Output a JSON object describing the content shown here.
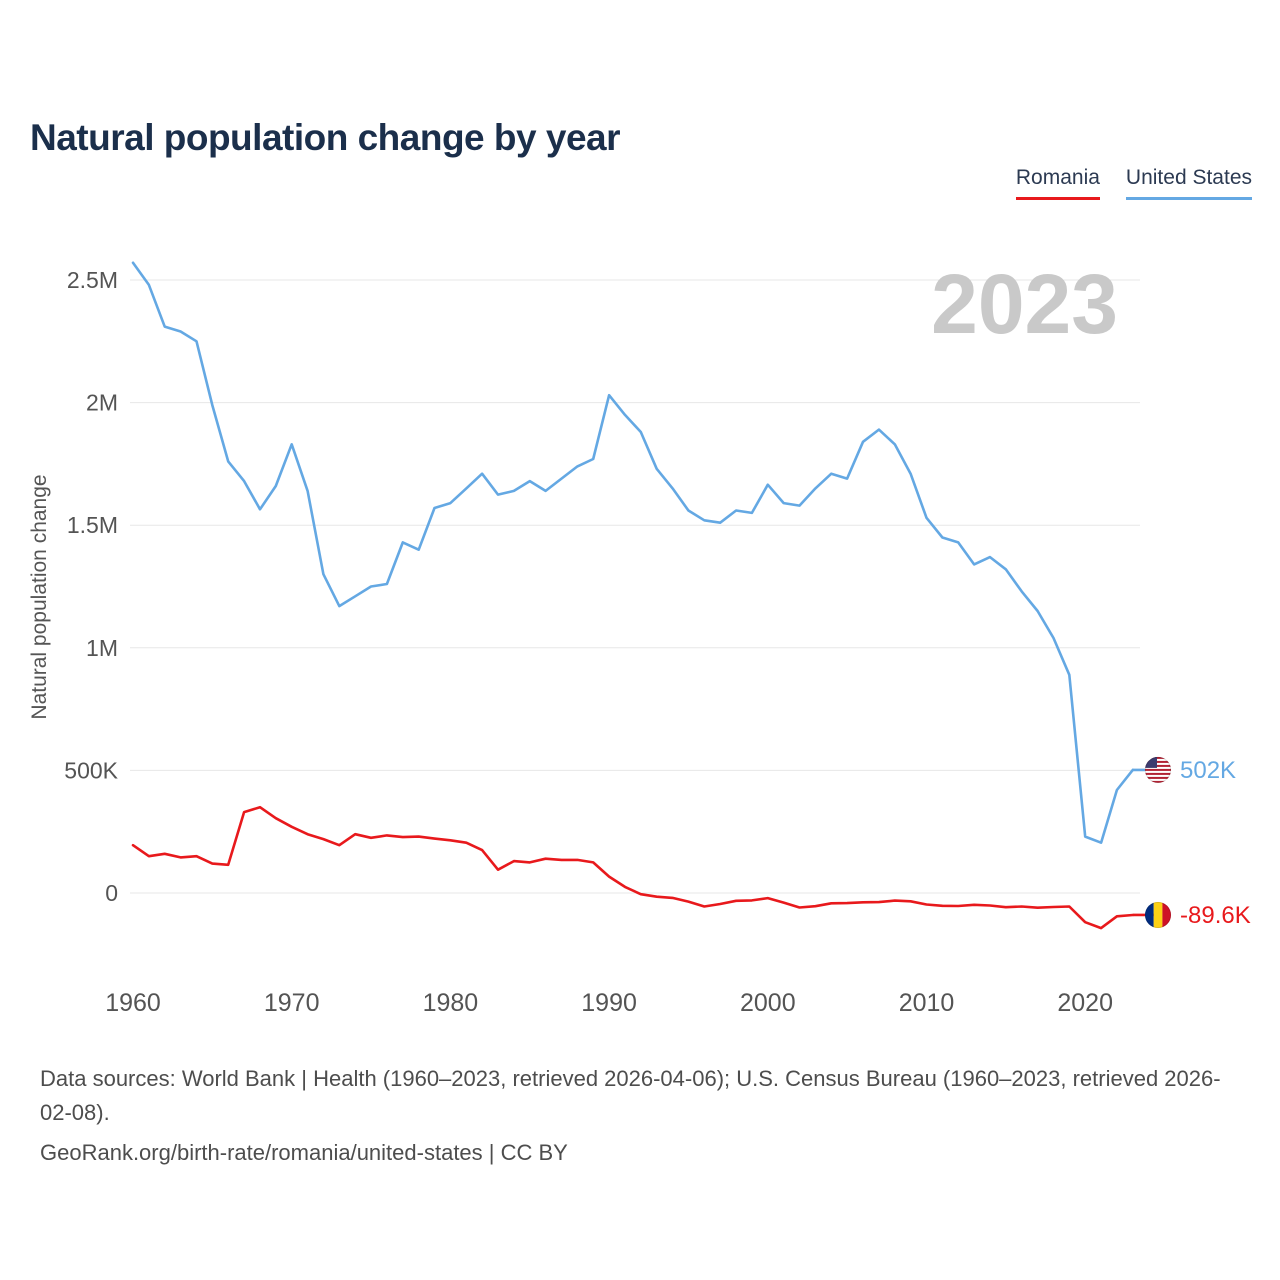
{
  "title": "Natural population change by year",
  "watermark": "2023",
  "legend": [
    {
      "label": "Romania",
      "color": "#e8191c"
    },
    {
      "label": "United States",
      "color": "#64a8e3"
    }
  ],
  "end_labels": [
    {
      "series": "United States",
      "value": "502K",
      "flag": "us"
    },
    {
      "series": "Romania",
      "value": "-89.6K",
      "flag": "ro"
    }
  ],
  "chart_data": {
    "type": "line",
    "title": "Natural population change by year",
    "xlabel": "",
    "ylabel": "Natural population change",
    "unit": "persons (values in thousands)",
    "grid": "horizontal",
    "legend_position": "top-right",
    "x_ticks": [
      1960,
      1970,
      1980,
      1990,
      2000,
      2010,
      2020
    ],
    "y_ticks_thousands": [
      0,
      500,
      1000,
      1500,
      2000,
      2500
    ],
    "y_tick_labels": [
      "0",
      "500K",
      "1M",
      "1.5M",
      "2M",
      "2.5M"
    ],
    "ylim_thousands": [
      -300,
      2650
    ],
    "x": [
      1960,
      1961,
      1962,
      1963,
      1964,
      1965,
      1966,
      1967,
      1968,
      1969,
      1970,
      1971,
      1972,
      1973,
      1974,
      1975,
      1976,
      1977,
      1978,
      1979,
      1980,
      1981,
      1982,
      1983,
      1984,
      1985,
      1986,
      1987,
      1988,
      1989,
      1990,
      1991,
      1992,
      1993,
      1994,
      1995,
      1996,
      1997,
      1998,
      1999,
      2000,
      2001,
      2002,
      2003,
      2004,
      2005,
      2006,
      2007,
      2008,
      2009,
      2010,
      2011,
      2012,
      2013,
      2014,
      2015,
      2016,
      2017,
      2018,
      2019,
      2020,
      2021,
      2022,
      2023
    ],
    "series": [
      {
        "name": "Romania",
        "color": "#e8191c",
        "values_thousands": [
          195,
          150,
          160,
          145,
          150,
          120,
          115,
          330,
          350,
          305,
          270,
          240,
          220,
          195,
          240,
          225,
          235,
          228,
          230,
          222,
          215,
          205,
          175,
          95,
          130,
          125,
          140,
          135,
          135,
          125,
          67,
          25,
          -5,
          -15,
          -20,
          -35,
          -55,
          -45,
          -32,
          -30,
          -21,
          -39,
          -59,
          -54,
          -42,
          -41,
          -38,
          -37,
          -31,
          -34,
          -47,
          -52,
          -53,
          -48,
          -51,
          -58,
          -55,
          -60,
          -57,
          -55,
          -119,
          -143,
          -95,
          -89.6
        ]
      },
      {
        "name": "United States",
        "color": "#64a8e3",
        "values_thousands": [
          2570,
          2480,
          2310,
          2290,
          2250,
          1990,
          1760,
          1680,
          1565,
          1660,
          1830,
          1640,
          1300,
          1170,
          1210,
          1250,
          1260,
          1430,
          1400,
          1570,
          1590,
          1650,
          1710,
          1625,
          1640,
          1680,
          1640,
          1690,
          1740,
          1770,
          2030,
          1950,
          1880,
          1730,
          1650,
          1560,
          1520,
          1510,
          1560,
          1550,
          1665,
          1590,
          1580,
          1650,
          1710,
          1690,
          1840,
          1890,
          1830,
          1710,
          1530,
          1450,
          1430,
          1340,
          1370,
          1320,
          1230,
          1150,
          1040,
          890,
          230,
          205,
          420,
          502
        ]
      }
    ]
  },
  "footer": {
    "sources": "Data sources: World Bank | Health (1960–2023, retrieved 2026-04-06); U.S. Census Bureau (1960–2023, retrieved 2026-02-08).",
    "attribution": "GeoRank.org/birth-rate/romania/united-states | CC BY"
  }
}
